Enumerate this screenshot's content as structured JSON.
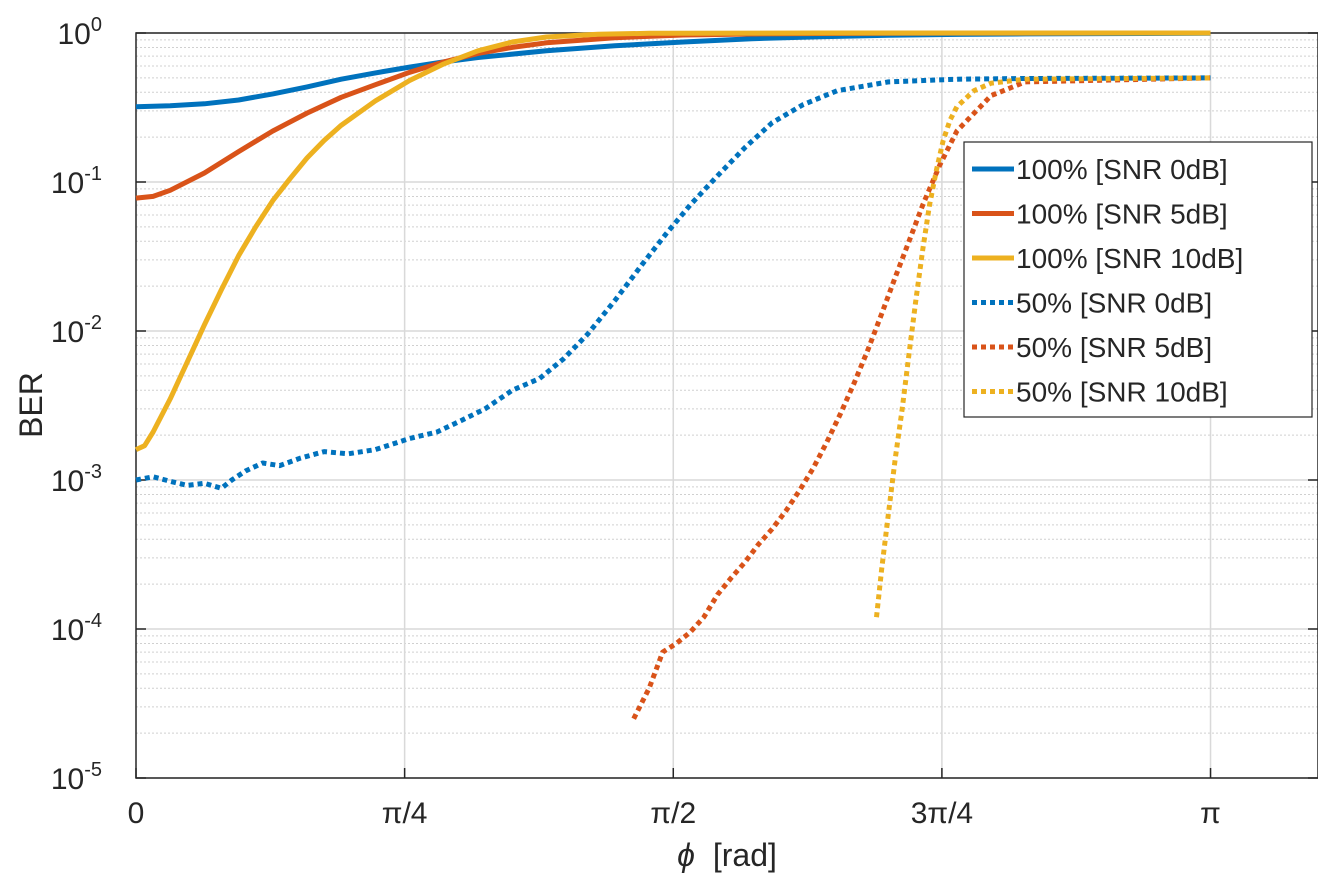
{
  "chart_data": {
    "type": "line",
    "xlabel_symbol": "ϕ",
    "xlabel_unit": "[rad]",
    "ylabel": "BER",
    "yscale": "log",
    "ylim": [
      1e-05,
      1
    ],
    "xlim": [
      0,
      3.4558
    ],
    "grid": true,
    "minor_grid_y": true,
    "legend_position": "right",
    "x_ticks": [
      {
        "value": 0,
        "label": "0"
      },
      {
        "value": 0.7854,
        "label": "π/4"
      },
      {
        "value": 1.5708,
        "label": "π/2"
      },
      {
        "value": 2.3562,
        "label": "3π/4"
      },
      {
        "value": 3.1416,
        "label": "π"
      }
    ],
    "y_ticks": [
      {
        "value": 1,
        "base": "10",
        "exp": "0"
      },
      {
        "value": 0.1,
        "base": "10",
        "exp": "-1"
      },
      {
        "value": 0.01,
        "base": "10",
        "exp": "-2"
      },
      {
        "value": 0.001,
        "base": "10",
        "exp": "-3"
      },
      {
        "value": 0.0001,
        "base": "10",
        "exp": "-4"
      },
      {
        "value": 1e-05,
        "base": "10",
        "exp": "-5"
      }
    ],
    "series": [
      {
        "name": "100% [SNR 0dB]",
        "color": "#0072BD",
        "style": "solid",
        "x": [
          0,
          0.1,
          0.2,
          0.3,
          0.4,
          0.5,
          0.6,
          0.7,
          0.8,
          0.9,
          1.0,
          1.2,
          1.4,
          1.6,
          1.8,
          2.0,
          2.2,
          2.4,
          2.6,
          3.1416
        ],
        "y": [
          0.32,
          0.325,
          0.335,
          0.355,
          0.39,
          0.435,
          0.49,
          0.54,
          0.59,
          0.64,
          0.685,
          0.76,
          0.82,
          0.87,
          0.915,
          0.945,
          0.965,
          0.978,
          0.986,
          0.995
        ]
      },
      {
        "name": "100% [SNR 5dB]",
        "color": "#D95319",
        "style": "solid",
        "x": [
          0,
          0.05,
          0.1,
          0.2,
          0.3,
          0.4,
          0.5,
          0.6,
          0.7,
          0.8,
          0.9,
          1.0,
          1.1,
          1.2,
          1.4,
          1.6,
          1.8,
          2.0,
          2.4,
          3.1416
        ],
        "y": [
          0.078,
          0.08,
          0.088,
          0.115,
          0.16,
          0.22,
          0.29,
          0.37,
          0.45,
          0.545,
          0.64,
          0.73,
          0.8,
          0.86,
          0.93,
          0.97,
          0.985,
          0.993,
          0.998,
          1.0
        ]
      },
      {
        "name": "100% [SNR 10dB]",
        "color": "#EDB120",
        "style": "solid",
        "x": [
          0,
          0.025,
          0.05,
          0.1,
          0.15,
          0.2,
          0.25,
          0.3,
          0.35,
          0.4,
          0.45,
          0.5,
          0.55,
          0.6,
          0.7,
          0.8,
          0.9,
          1.0,
          1.1,
          1.2,
          1.35,
          1.5,
          2.0,
          3.1416
        ],
        "y": [
          0.0016,
          0.0017,
          0.0021,
          0.0035,
          0.0062,
          0.011,
          0.019,
          0.032,
          0.05,
          0.075,
          0.105,
          0.145,
          0.19,
          0.24,
          0.35,
          0.48,
          0.62,
          0.76,
          0.87,
          0.94,
          0.98,
          0.995,
          1.0,
          1.0
        ]
      },
      {
        "name": "50% [SNR 0dB]",
        "color": "#0072BD",
        "style": "dotted",
        "x": [
          0,
          0.05,
          0.1,
          0.15,
          0.2,
          0.25,
          0.28,
          0.32,
          0.37,
          0.42,
          0.48,
          0.55,
          0.62,
          0.7,
          0.8,
          0.88,
          0.95,
          1.02,
          1.1,
          1.18,
          1.25,
          1.32,
          1.4,
          1.48,
          1.55,
          1.62,
          1.7,
          1.78,
          1.86,
          1.95,
          2.05,
          2.2,
          2.4,
          2.6,
          3.1416
        ],
        "y": [
          0.001,
          0.00105,
          0.00098,
          0.00092,
          0.00095,
          0.00088,
          0.001,
          0.00115,
          0.0013,
          0.00125,
          0.0014,
          0.00155,
          0.0015,
          0.0016,
          0.0019,
          0.0021,
          0.0025,
          0.003,
          0.004,
          0.0048,
          0.0065,
          0.0095,
          0.016,
          0.028,
          0.045,
          0.07,
          0.11,
          0.17,
          0.25,
          0.33,
          0.41,
          0.47,
          0.49,
          0.495,
          0.5
        ]
      },
      {
        "name": "50% [SNR 5dB]",
        "color": "#D95319",
        "style": "dotted",
        "x": [
          1.455,
          1.5,
          1.54,
          1.58,
          1.62,
          1.66,
          1.7,
          1.74,
          1.78,
          1.82,
          1.86,
          1.9,
          1.94,
          1.98,
          2.02,
          2.06,
          2.1,
          2.14,
          2.18,
          2.22,
          2.26,
          2.3,
          2.35,
          2.4,
          2.5,
          2.6,
          3.1416
        ],
        "y": [
          2.5e-05,
          4e-05,
          7e-05,
          8e-05,
          9.5e-05,
          0.00012,
          0.00017,
          0.00022,
          0.00028,
          0.00037,
          0.00047,
          0.00062,
          0.00085,
          0.0012,
          0.0018,
          0.0028,
          0.0045,
          0.0075,
          0.013,
          0.023,
          0.04,
          0.07,
          0.13,
          0.22,
          0.38,
          0.47,
          0.5
        ]
      },
      {
        "name": "50% [SNR 10dB]",
        "color": "#EDB120",
        "style": "dotted",
        "x": [
          2.165,
          2.18,
          2.2,
          2.22,
          2.24,
          2.26,
          2.28,
          2.3,
          2.32,
          2.34,
          2.36,
          2.38,
          2.4,
          2.45,
          2.5,
          2.6,
          3.1416
        ],
        "y": [
          0.00012,
          0.00025,
          0.0006,
          0.0014,
          0.003,
          0.007,
          0.016,
          0.035,
          0.07,
          0.12,
          0.19,
          0.26,
          0.32,
          0.41,
          0.46,
          0.49,
          0.5
        ]
      }
    ]
  }
}
